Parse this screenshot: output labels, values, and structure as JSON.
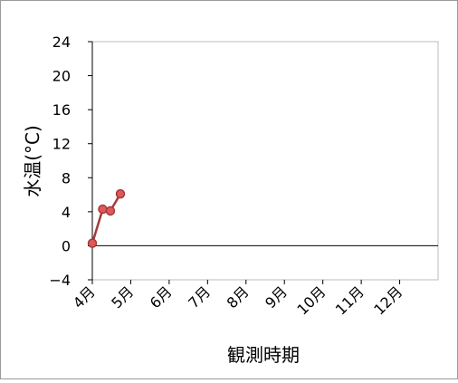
{
  "chart_data": {
    "type": "line",
    "title": "",
    "xlabel": "観測時期",
    "ylabel": "水温(°C)",
    "x_ticks": [
      "4月",
      "5月",
      "6月",
      "7月",
      "8月",
      "9月",
      "10月",
      "11月",
      "12月"
    ],
    "x_domain": [
      4,
      13
    ],
    "ylim": [
      -4,
      24
    ],
    "y_ticks": [
      -4,
      0,
      4,
      8,
      12,
      16,
      20,
      24
    ],
    "grid": false,
    "legend": "none",
    "series": [
      {
        "color": "#a33a3a",
        "marker_fill": "#e05858",
        "points": [
          {
            "x": 4.0,
            "y": 0.3
          },
          {
            "x": 4.27,
            "y": 4.3
          },
          {
            "x": 4.47,
            "y": 4.1
          },
          {
            "x": 4.73,
            "y": 6.1
          }
        ]
      }
    ]
  }
}
